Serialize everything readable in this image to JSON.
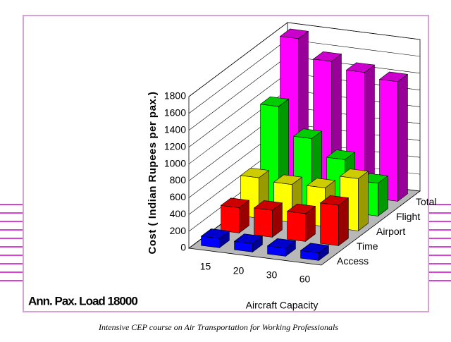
{
  "chart_data": {
    "type": "bar3d",
    "x_label": "Aircraft Capacity",
    "y_label": "Cost ( Indian Rupees per pax.)",
    "annotation": "Ann. Pax. Load 18000",
    "footer": "Intensive CEP course on Air Transportation for Working Professionals",
    "categories": [
      "15",
      "20",
      "30",
      "60"
    ],
    "ylim": [
      0,
      1800
    ],
    "yticks": [
      0,
      200,
      400,
      600,
      800,
      1000,
      1200,
      1400,
      1600,
      1800
    ],
    "grid": true,
    "series": [
      {
        "name": "Access",
        "color": "#0000ff",
        "values": [
          110,
          100,
          95,
          90
        ]
      },
      {
        "name": "Time",
        "color": "#ff0000",
        "values": [
          300,
          320,
          330,
          480
        ]
      },
      {
        "name": "Airport",
        "color": "#ffff00",
        "values": [
          480,
          450,
          460,
          620
        ]
      },
      {
        "name": "Flight",
        "color": "#00ff00",
        "values": [
          1150,
          820,
          620,
          390
        ]
      },
      {
        "name": "Total",
        "color": "#ff00ff",
        "values": [
          1780,
          1560,
          1480,
          1420
        ]
      }
    ]
  }
}
